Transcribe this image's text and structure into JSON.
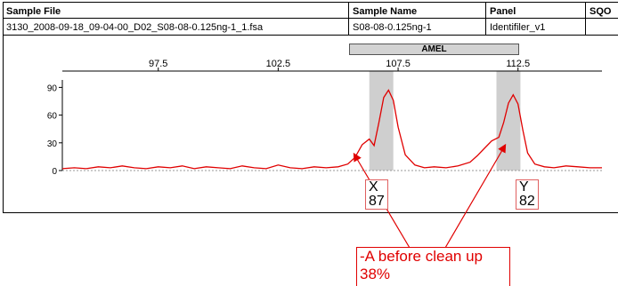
{
  "table": {
    "headers": [
      "Sample File",
      "Sample Name",
      "Panel",
      "SQO"
    ],
    "row": [
      "3130_2008-09-18_09-04-00_D02_S08-08-0.125ng-1_1.fsa",
      "S08-08-0.125ng-1",
      "Identifiler_v1",
      ""
    ]
  },
  "marker": {
    "label": "AMEL"
  },
  "alleles": [
    {
      "name": "X",
      "height": "87"
    },
    {
      "name": "Y",
      "height": "82"
    }
  ],
  "annotation": {
    "line1": "-A before clean up",
    "line2": "38%"
  },
  "colors": {
    "trace": "#e00000",
    "bin": "#cfcfcf",
    "annotation": "#e00000"
  },
  "chart_data": {
    "type": "line",
    "title": "",
    "xlabel": "",
    "ylabel": "",
    "xlim": [
      93.5,
      116
    ],
    "ylim": [
      0,
      100
    ],
    "x_ticks": [
      "97.5",
      "102.5",
      "107.5",
      "112.5"
    ],
    "y_ticks": [
      "0",
      "30",
      "60",
      "90"
    ],
    "bins": [
      {
        "allele": "X",
        "x_start": 106.3,
        "x_end": 107.3
      },
      {
        "allele": "Y",
        "x_start": 111.6,
        "x_end": 112.6
      }
    ],
    "series": [
      {
        "color": "#e00000",
        "x": [
          93.5,
          94.0,
          94.5,
          95.0,
          95.5,
          96.0,
          96.5,
          97.0,
          97.5,
          98.0,
          98.5,
          99.0,
          99.5,
          100.0,
          100.5,
          101.0,
          101.5,
          102.0,
          102.5,
          103.0,
          103.5,
          104.0,
          104.5,
          105.0,
          105.4,
          105.7,
          106.0,
          106.3,
          106.5,
          106.7,
          106.9,
          107.1,
          107.3,
          107.5,
          107.8,
          108.2,
          108.6,
          109.0,
          109.5,
          110.0,
          110.5,
          110.8,
          111.1,
          111.4,
          111.7,
          111.9,
          112.1,
          112.3,
          112.5,
          112.7,
          112.9,
          113.2,
          113.6,
          114.0,
          114.5,
          115.0,
          115.5,
          116.0
        ],
        "y": [
          2,
          3,
          2,
          4,
          3,
          5,
          3,
          2,
          4,
          3,
          5,
          2,
          4,
          3,
          2,
          5,
          3,
          2,
          6,
          3,
          2,
          4,
          3,
          4,
          7,
          14,
          28,
          34,
          27,
          52,
          79,
          87,
          76,
          47,
          17,
          6,
          3,
          4,
          3,
          5,
          9,
          16,
          24,
          32,
          36,
          52,
          73,
          82,
          72,
          44,
          19,
          7,
          4,
          3,
          5,
          4,
          3,
          3
        ]
      }
    ]
  }
}
